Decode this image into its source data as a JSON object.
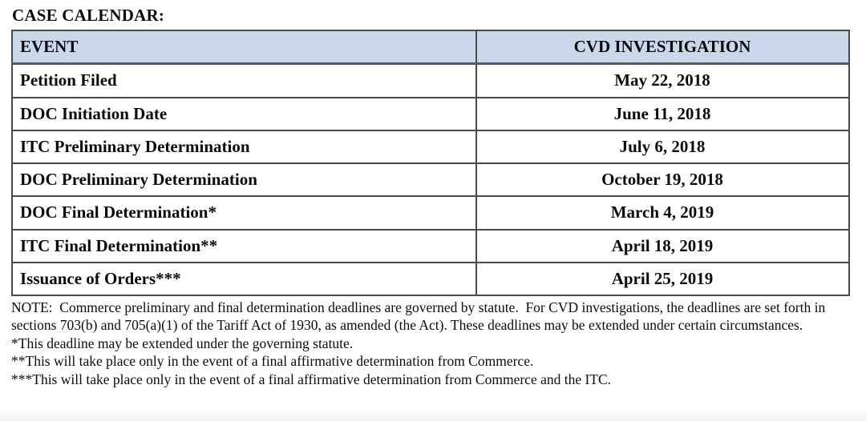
{
  "title": "CASE CALENDAR:",
  "table": {
    "headers": [
      "EVENT",
      "CVD INVESTIGATION"
    ],
    "rows": [
      {
        "event": "Petition Filed",
        "date": "May 22, 2018"
      },
      {
        "event": "DOC Initiation Date",
        "date": "June 11, 2018"
      },
      {
        "event": "ITC Preliminary Determination",
        "date": "July 6, 2018"
      },
      {
        "event": "DOC Preliminary Determination",
        "date": "October 19, 2018"
      },
      {
        "event": "DOC Final Determination*",
        "date": "March 4, 2019"
      },
      {
        "event": "ITC Final Determination**",
        "date": "April 18, 2019"
      },
      {
        "event": "Issuance of Orders***",
        "date": "April 25, 2019"
      }
    ]
  },
  "note": "NOTE:  Commerce preliminary and final determination deadlines are governed by statute.  For CVD investigations, the deadlines are set forth in sections 703(b) and 705(a)(1) of the Tariff Act of 1930, as amended (the Act). These deadlines may be extended under certain circumstances.",
  "footnotes": [
    "*This deadline may be extended under the governing statute.",
    "**This will take place only in the event of a final affirmative determination from Commerce.",
    "***This will take place only in the event of a final affirmative determination from Commerce and the ITC."
  ],
  "colors": {
    "header_bg": "#cbd8ec",
    "border": "#4a4a4a",
    "text": "#0b0b0b"
  }
}
